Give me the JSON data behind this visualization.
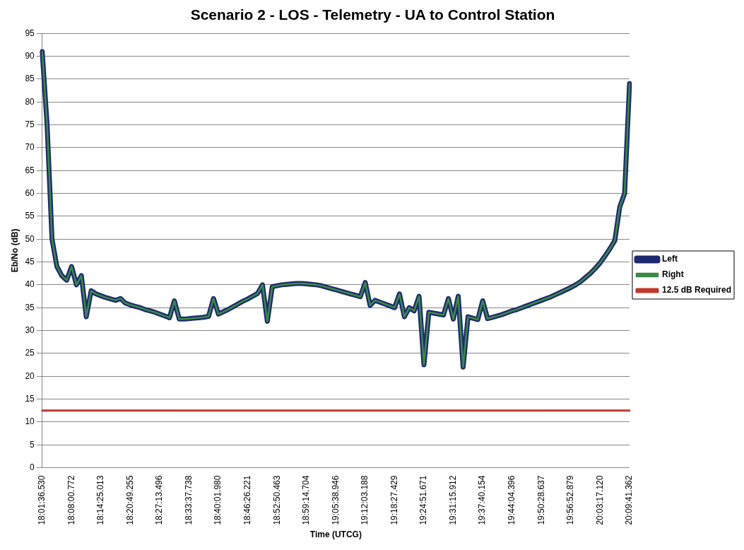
{
  "chart_data": {
    "type": "line",
    "title": "Scenario 2 - LOS - Telemetry - UA to Control Station",
    "xlabel": "Time (UTCG)",
    "ylabel": "Eb/No (dB)",
    "categories": [
      "18:01:36.530",
      null,
      null,
      null,
      null,
      null,
      "18:08:00.772",
      null,
      null,
      null,
      null,
      null,
      "18:14:25.013",
      null,
      null,
      null,
      null,
      null,
      "18:20:49.255",
      null,
      null,
      null,
      null,
      null,
      "18:27:13.496",
      null,
      null,
      null,
      null,
      null,
      "18:33:37.738",
      null,
      null,
      null,
      null,
      null,
      "18:40:01.980",
      null,
      null,
      null,
      null,
      null,
      "18:46:26.221",
      null,
      null,
      null,
      null,
      null,
      "18:52:50.463",
      null,
      null,
      null,
      null,
      null,
      "18:59:14.704",
      null,
      null,
      null,
      null,
      null,
      "19:05:38.946",
      null,
      null,
      null,
      null,
      null,
      "19:12:03.188",
      null,
      null,
      null,
      null,
      null,
      "19:18:27.429",
      null,
      null,
      null,
      null,
      null,
      "19:24:51.671",
      null,
      null,
      null,
      null,
      null,
      "19:31:15.912",
      null,
      null,
      null,
      null,
      null,
      "19:37:40.154",
      null,
      null,
      null,
      null,
      null,
      "19:44:04.396",
      null,
      null,
      null,
      null,
      null,
      "19:50:28.637",
      null,
      null,
      null,
      null,
      null,
      "19:56:52.879",
      null,
      null,
      null,
      null,
      null,
      "20:03:17.120",
      null,
      null,
      null,
      null,
      null,
      "20:09:41.362"
    ],
    "series": [
      {
        "name": "Left",
        "color": "#1f2a6e",
        "values": [
          91,
          75,
          50,
          44,
          42,
          41,
          44,
          40,
          42,
          33,
          38.7,
          38,
          37.6,
          37.2,
          36.9,
          36.6,
          37,
          36,
          35.6,
          35.3,
          35,
          34.6,
          34.3,
          34,
          33.6,
          33.2,
          32.8,
          36.5,
          32.5,
          32.5,
          32.6,
          32.7,
          32.8,
          32.9,
          33.1,
          37,
          33.6,
          34.1,
          34.6,
          35.2,
          35.8,
          36.4,
          36.9,
          37.5,
          38.1,
          40,
          32,
          39.6,
          39.8,
          40,
          40.1,
          40.2,
          40.3,
          40.3,
          40.2,
          40.1,
          40,
          39.8,
          39.5,
          39.2,
          38.9,
          38.6,
          38.3,
          38,
          37.7,
          37.4,
          40.5,
          35.5,
          36.6,
          36.2,
          35.8,
          35.4,
          35,
          38,
          33,
          35,
          34.3,
          37.5,
          22.5,
          34,
          33.8,
          33.6,
          33.4,
          37,
          32.5,
          37.5,
          22,
          33,
          32.7,
          32.4,
          36.5,
          32.6,
          32.9,
          33.2,
          33.5,
          33.9,
          34.3,
          34.6,
          35,
          35.4,
          35.8,
          36.2,
          36.6,
          37,
          37.4,
          37.9,
          38.4,
          38.9,
          39.4,
          40,
          40.7,
          41.6,
          42.5,
          43.6,
          44.8,
          46.3,
          47.9,
          49.7,
          57,
          60,
          84
        ]
      },
      {
        "name": "Right",
        "color": "#3a8a4a",
        "values": [
          91,
          75,
          50,
          44,
          42,
          41,
          44,
          40,
          42,
          33,
          38.7,
          38,
          37.6,
          37.2,
          36.9,
          36.6,
          37,
          36,
          35.6,
          35.3,
          35,
          34.6,
          34.3,
          34,
          33.6,
          33.2,
          32.8,
          36.5,
          32.5,
          32.5,
          32.6,
          32.7,
          32.8,
          32.9,
          33.1,
          37,
          33.6,
          34.1,
          34.6,
          35.2,
          35.8,
          36.4,
          36.9,
          37.5,
          38.1,
          40,
          32,
          39.6,
          39.8,
          40,
          40.1,
          40.2,
          40.3,
          40.3,
          40.2,
          40.1,
          40,
          39.8,
          39.5,
          39.2,
          38.9,
          38.6,
          38.3,
          38,
          37.7,
          37.4,
          40.5,
          35.5,
          36.6,
          36.2,
          35.8,
          35.4,
          35,
          38,
          33,
          35,
          34.3,
          37.5,
          22.5,
          34,
          33.8,
          33.6,
          33.4,
          37,
          32.5,
          37.5,
          22,
          33,
          32.7,
          32.4,
          36.5,
          32.6,
          32.9,
          33.2,
          33.5,
          33.9,
          34.3,
          34.6,
          35,
          35.4,
          35.8,
          36.2,
          36.6,
          37,
          37.4,
          37.9,
          38.4,
          38.9,
          39.4,
          40,
          40.7,
          41.6,
          42.5,
          43.6,
          44.8,
          46.3,
          47.9,
          49.7,
          57,
          60,
          84
        ]
      },
      {
        "name": "12.5 dB Required",
        "color": "#c0392b",
        "values": [
          12.5,
          12.5,
          12.5,
          12.5,
          12.5,
          12.5,
          12.5,
          12.5,
          12.5,
          12.5,
          12.5,
          12.5,
          12.5,
          12.5,
          12.5,
          12.5,
          12.5,
          12.5,
          12.5,
          12.5,
          12.5,
          12.5,
          12.5,
          12.5,
          12.5,
          12.5,
          12.5,
          12.5,
          12.5,
          12.5,
          12.5,
          12.5,
          12.5,
          12.5,
          12.5,
          12.5,
          12.5,
          12.5,
          12.5,
          12.5,
          12.5,
          12.5,
          12.5,
          12.5,
          12.5,
          12.5,
          12.5,
          12.5,
          12.5,
          12.5,
          12.5,
          12.5,
          12.5,
          12.5,
          12.5,
          12.5,
          12.5,
          12.5,
          12.5,
          12.5,
          12.5,
          12.5,
          12.5,
          12.5,
          12.5,
          12.5,
          12.5,
          12.5,
          12.5,
          12.5,
          12.5,
          12.5,
          12.5,
          12.5,
          12.5,
          12.5,
          12.5,
          12.5,
          12.5,
          12.5,
          12.5,
          12.5,
          12.5,
          12.5,
          12.5,
          12.5,
          12.5,
          12.5,
          12.5,
          12.5,
          12.5,
          12.5,
          12.5,
          12.5,
          12.5,
          12.5,
          12.5,
          12.5,
          12.5,
          12.5,
          12.5,
          12.5,
          12.5,
          12.5,
          12.5,
          12.5,
          12.5,
          12.5,
          12.5,
          12.5,
          12.5,
          12.5,
          12.5,
          12.5,
          12.5,
          12.5,
          12.5,
          12.5,
          12.5,
          12.5,
          12.5
        ]
      }
    ],
    "ylim": [
      0,
      95
    ],
    "yticks": [
      0,
      5,
      10,
      15,
      20,
      25,
      30,
      35,
      40,
      45,
      50,
      55,
      60,
      65,
      70,
      75,
      80,
      85,
      90,
      95
    ],
    "grid": "y",
    "legend": "right",
    "marker": "none",
    "line_style": "solid"
  }
}
